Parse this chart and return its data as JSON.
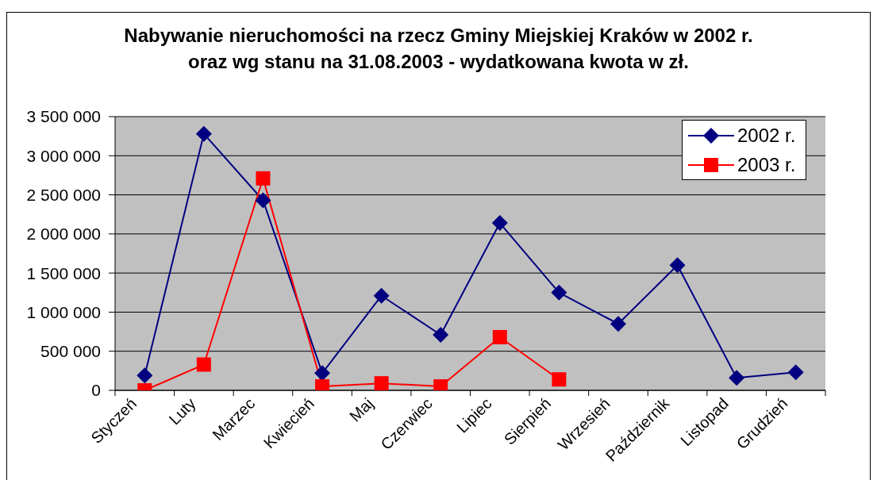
{
  "chart_data": {
    "type": "line",
    "title": "Nabywanie nieruchomości na rzecz Gminy Miejskiej Kraków w 2002 r.\noraz wg stanu na 31.08.2003 - wydatkowana kwota w zł.",
    "categories": [
      "Styczeń",
      "Luty",
      "Marzec",
      "Kwiecień",
      "Maj",
      "Czerwiec",
      "Lipiec",
      "Sierpień",
      "Wrzesień",
      "Październik",
      "Listopad",
      "Grudzień"
    ],
    "series": [
      {
        "name": "2002 r.",
        "color": "#000080",
        "marker": "diamond",
        "values": [
          190000,
          3280000,
          2430000,
          220000,
          1210000,
          710000,
          2140000,
          1250000,
          850000,
          1600000,
          160000,
          230000
        ]
      },
      {
        "name": "2003 r.",
        "color": "#ff0000",
        "marker": "square",
        "values": [
          0,
          330000,
          2710000,
          50000,
          90000,
          50000,
          680000,
          140000,
          null,
          null,
          null,
          null
        ]
      }
    ],
    "ylim": [
      0,
      3500000
    ],
    "yticks": [
      0,
      {
        "value": 500000,
        "label": "500 000"
      },
      {
        "value": 1000000,
        "label": "1 000 000"
      },
      {
        "value": 1500000,
        "label": "1 500 000"
      },
      {
        "value": 2000000,
        "label": "2 000 000"
      },
      {
        "value": 2500000,
        "label": "2 500 000"
      },
      {
        "value": 3000000,
        "label": "3 000 000"
      },
      {
        "value": 3500000,
        "label": "3 500 000"
      }
    ],
    "grid": "y",
    "legend": "top right",
    "line_style": "solid"
  }
}
